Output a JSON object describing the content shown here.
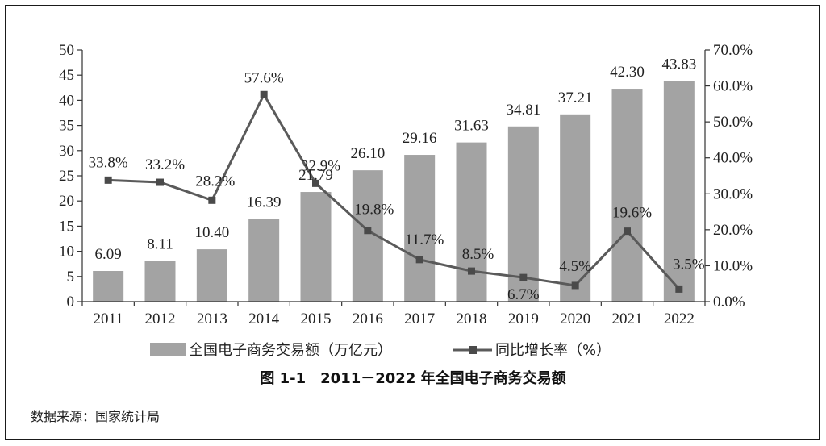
{
  "chart_data": {
    "type": "bar",
    "title": "",
    "categories": [
      "2011",
      "2012",
      "2013",
      "2014",
      "2015",
      "2016",
      "2017",
      "2018",
      "2019",
      "2020",
      "2021",
      "2022"
    ],
    "series": [
      {
        "name": "全国电子商务交易额（万亿元）",
        "type": "bar",
        "axis": "left",
        "color": "#a3a3a3",
        "values": [
          6.09,
          8.11,
          10.4,
          16.39,
          21.79,
          26.1,
          29.16,
          31.63,
          34.81,
          37.21,
          42.3,
          43.83
        ],
        "labels": [
          "6.09",
          "8.11",
          "10.40",
          "16.39",
          "21.79",
          "26.10",
          "29.16",
          "31.63",
          "34.81",
          "37.21",
          "42.30",
          "43.83"
        ]
      },
      {
        "name": "同比增长率（%）",
        "type": "line",
        "axis": "right",
        "color": "#5a5a5a",
        "values": [
          33.8,
          33.2,
          28.2,
          57.6,
          32.9,
          19.8,
          11.7,
          8.5,
          6.7,
          4.5,
          19.6,
          3.5
        ],
        "labels": [
          "33.8%",
          "33.2%",
          "28.2%",
          "57.6%",
          "32.9%",
          "19.8%",
          "11.7%",
          "8.5%",
          "6.7%",
          "4.5%",
          "19.6%",
          "3.5%"
        ]
      }
    ],
    "y_left": {
      "min": 0,
      "max": 50,
      "step": 5,
      "ticks": [
        "0",
        "5",
        "10",
        "15",
        "20",
        "25",
        "30",
        "35",
        "40",
        "45",
        "50"
      ]
    },
    "y_right": {
      "min": 0,
      "max": 70,
      "step": 10,
      "ticks": [
        "0.0%",
        "10.0%",
        "20.0%",
        "30.0%",
        "40.0%",
        "50.0%",
        "60.0%",
        "70.0%"
      ]
    },
    "xlabel": "",
    "ylabel": "",
    "grid": false,
    "legend": "bottom"
  },
  "caption": "图 1-1　2011－2022 年全国电子商务交易额",
  "source": "数据来源：国家统计局"
}
